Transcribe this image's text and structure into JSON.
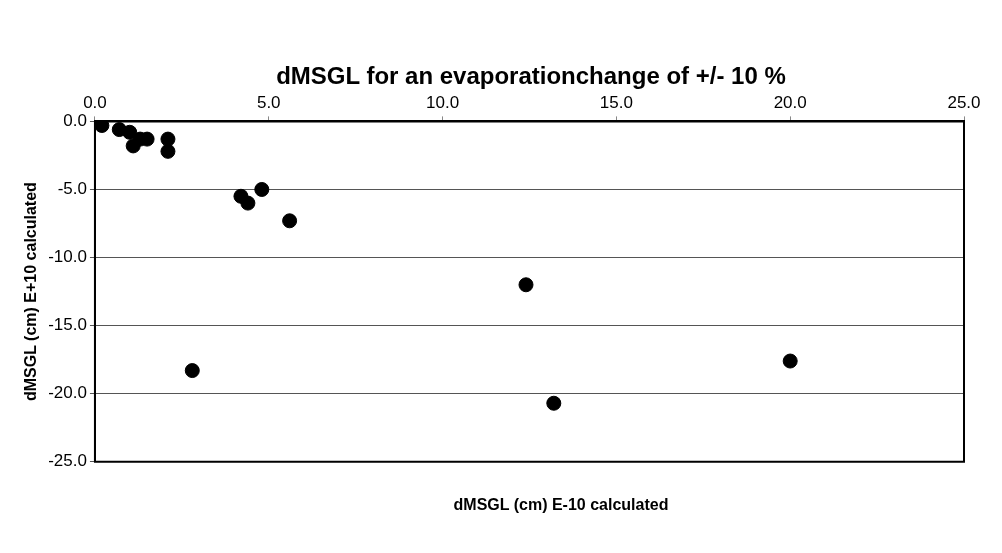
{
  "chart_data": {
    "type": "scatter",
    "title": "dMSGL for an evaporationchange  of +/- 10 %",
    "xlabel": "dMSGL (cm) E-10 calculated",
    "ylabel": "dMSGL (cm) E+10 calculated",
    "x": [
      0.2,
      0.7,
      1.0,
      1.1,
      1.3,
      1.5,
      2.1,
      2.1,
      2.8,
      4.2,
      4.4,
      4.8,
      5.6,
      12.4,
      13.2,
      20.0
    ],
    "values": [
      -0.3,
      -0.6,
      -0.8,
      -1.8,
      -1.3,
      -1.3,
      -1.3,
      -2.2,
      -18.3,
      -5.5,
      -6.0,
      -5.0,
      -7.3,
      -12.0,
      -20.7,
      -17.6
    ],
    "color": "#000000",
    "marker": "circle",
    "xlim": [
      0,
      25
    ],
    "xticks": [
      {
        "value": 0,
        "label": "0.0"
      },
      {
        "value": 5,
        "label": "5.0"
      },
      {
        "value": 10,
        "label": "10.0"
      },
      {
        "value": 15,
        "label": "15.0"
      },
      {
        "value": 20,
        "label": "20.0"
      },
      {
        "value": 25,
        "label": "25.0"
      }
    ],
    "ylim": [
      -25,
      0
    ],
    "yticks": [
      {
        "value": -25,
        "label": "-25.0"
      },
      {
        "value": -20,
        "label": "-20.0"
      },
      {
        "value": -15,
        "label": "-15.0"
      },
      {
        "value": -10,
        "label": "-10.0"
      },
      {
        "value": -5,
        "label": "-5.0"
      },
      {
        "value": 0,
        "label": "0.0"
      }
    ],
    "grid": "y",
    "legend": false
  }
}
